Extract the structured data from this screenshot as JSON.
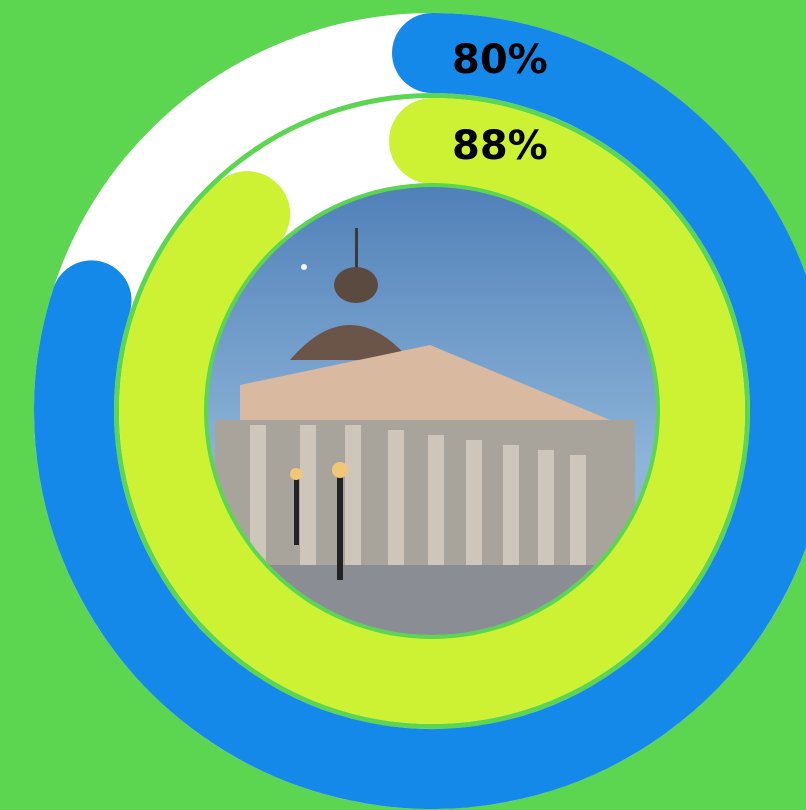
{
  "chart_data": {
    "type": "radial",
    "series": [
      {
        "color": "#1589ea",
        "values": [
          80
        ],
        "value_labels": [
          "80%"
        ]
      },
      {
        "color": "#cdf234",
        "values": [
          88
        ],
        "value_labels": [
          "88%"
        ]
      }
    ],
    "xlim": [
      0,
      100
    ],
    "track_color": "#ffffff",
    "background": "#5cd651"
  }
}
